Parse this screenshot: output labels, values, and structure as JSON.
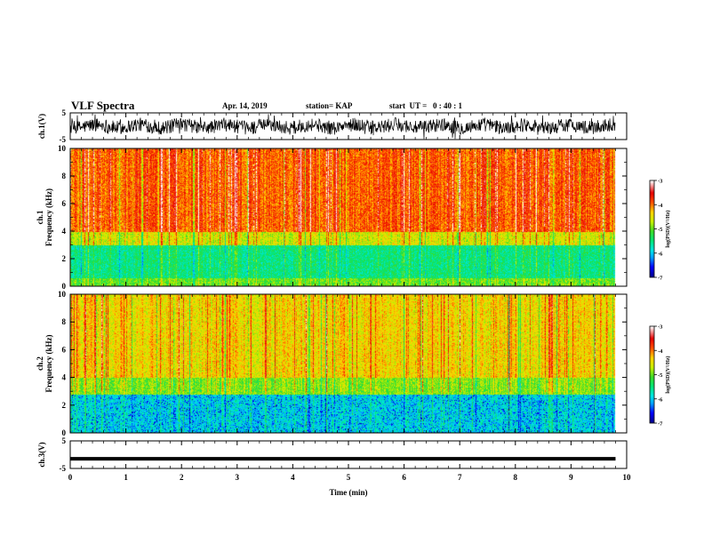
{
  "header": {
    "title": "VLF Spectra",
    "date": "Apr. 14, 2019",
    "station": "station= KAP",
    "start_ut": "start  UT =   0 : 40 : 1"
  },
  "chart_data": [
    {
      "type": "line",
      "ylabel": "ch.1(V)",
      "ylim": [
        -5,
        5
      ],
      "yticks": [
        "5",
        "-5"
      ],
      "xlim": [
        0,
        10
      ],
      "description_series": "dense noisy waveform, amplitude roughly -3..3 V, 0 to 9.8 min"
    },
    {
      "type": "heatmap",
      "ylabel_top": "ch.1",
      "ylabel": "Frequency (kHz)",
      "ylim": [
        0,
        10
      ],
      "yticks": [
        "0",
        "2",
        "4",
        "6",
        "8",
        "10"
      ],
      "xlim": [
        0,
        10
      ],
      "data_extent_min": 9.8,
      "bands": [
        {
          "from_khz": 0,
          "to_khz": 0.6,
          "level": -5.0
        },
        {
          "from_khz": 0.6,
          "to_khz": 3.0,
          "level": -5.5
        },
        {
          "from_khz": 3.0,
          "to_khz": 4.0,
          "level": -4.6
        },
        {
          "from_khz": 4.0,
          "to_khz": 10.0,
          "level": -3.9
        }
      ],
      "colorbar": {
        "label": "log(PSD)(V²/Hz)",
        "ticks": [
          "-3",
          "-4",
          "-5",
          "-6",
          "-7"
        ],
        "min": -7,
        "max": -3
      }
    },
    {
      "type": "heatmap",
      "ylabel_top": "ch.2",
      "ylabel": "Frequency (kHz)",
      "ylim": [
        0,
        10
      ],
      "yticks": [
        "0",
        "2",
        "4",
        "6",
        "8",
        "10"
      ],
      "xlim": [
        0,
        10
      ],
      "data_extent_min": 9.8,
      "bands": [
        {
          "from_khz": 0,
          "to_khz": 2.8,
          "level": -5.9
        },
        {
          "from_khz": 2.8,
          "to_khz": 4.0,
          "level": -4.9
        },
        {
          "from_khz": 4.0,
          "to_khz": 10.0,
          "level": -4.4
        }
      ],
      "colorbar": {
        "label": "log(PSD)(V²/Hz)",
        "ticks": [
          "-3",
          "-4",
          "-5",
          "-6",
          "-7"
        ],
        "min": -7,
        "max": -3
      }
    },
    {
      "type": "line",
      "ylabel": "ch.3(V)",
      "ylim": [
        -5,
        5
      ],
      "yticks": [
        "5",
        "-5"
      ],
      "xlim": [
        0,
        10
      ],
      "constant_value": -1.5,
      "xlabel": "Time  (min)",
      "xticks": [
        "0",
        "1",
        "2",
        "3",
        "4",
        "5",
        "6",
        "7",
        "8",
        "9",
        "10"
      ]
    }
  ]
}
